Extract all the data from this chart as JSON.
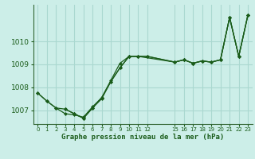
{
  "title": "Graphe pression niveau de la mer (hPa)",
  "background_color": "#cceee8",
  "grid_color": "#aad8d0",
  "line_color": "#1a5c1a",
  "spine_color": "#336633",
  "ylim": [
    1006.4,
    1011.6
  ],
  "yticks": [
    1007,
    1008,
    1009,
    1010
  ],
  "xlim": [
    -0.5,
    23.5
  ],
  "xticks": [
    0,
    1,
    2,
    3,
    4,
    5,
    6,
    7,
    8,
    9,
    10,
    11,
    12,
    15,
    16,
    17,
    18,
    19,
    20,
    21,
    22,
    23
  ],
  "line1_x": [
    0,
    1,
    2,
    3,
    4,
    5,
    6,
    7,
    8,
    9,
    10,
    11,
    15,
    16,
    17,
    18,
    19,
    20,
    21,
    22,
    23
  ],
  "line1_y": [
    1007.75,
    1007.4,
    1007.1,
    1006.85,
    1006.8,
    1006.7,
    1007.15,
    1007.55,
    1008.3,
    1009.05,
    1009.35,
    1009.35,
    1009.1,
    1009.2,
    1009.05,
    1009.15,
    1009.1,
    1009.2,
    1011.05,
    1009.35,
    1011.15
  ],
  "line2_x": [
    0,
    1,
    2,
    3,
    4,
    5,
    6,
    7,
    8,
    9,
    10,
    11,
    12,
    15,
    16,
    17,
    18,
    19,
    20,
    21,
    22,
    23
  ],
  "line2_y": [
    1007.75,
    1007.4,
    1007.1,
    1007.05,
    1006.85,
    1006.65,
    1007.1,
    1007.55,
    1008.25,
    1008.85,
    1009.35,
    1009.35,
    1009.35,
    1009.1,
    1009.2,
    1009.05,
    1009.15,
    1009.1,
    1009.2,
    1011.05,
    1009.35,
    1011.15
  ],
  "line3_x": [
    3,
    4,
    5,
    6,
    7,
    8,
    9,
    10,
    11,
    12,
    15,
    16,
    17,
    18,
    19,
    20,
    21,
    22,
    23
  ],
  "line3_y": [
    1007.05,
    1006.85,
    1006.65,
    1007.1,
    1007.5,
    1008.25,
    1008.85,
    1009.35,
    1009.35,
    1009.35,
    1009.1,
    1009.2,
    1009.05,
    1009.15,
    1009.1,
    1009.2,
    1011.05,
    1009.35,
    1011.15
  ]
}
